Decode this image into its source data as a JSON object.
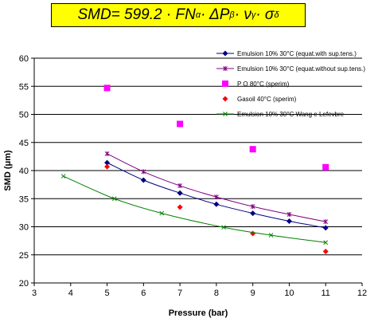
{
  "formula": {
    "lead": "SMD= 599.2 · FN",
    "alpha": "α",
    "dp": " · ΔP",
    "beta": "β",
    "visc": " · ν",
    "gamma": "γ",
    "sigma": " · σ",
    "delta": "δ"
  },
  "chart_data": {
    "type": "line",
    "xlabel": "Pressure (bar)",
    "ylabel": "SMD (μm)",
    "xlim": [
      3,
      12
    ],
    "ylim": [
      20,
      60
    ],
    "xticks": [
      3,
      4,
      5,
      6,
      7,
      8,
      9,
      10,
      11,
      12
    ],
    "yticks": [
      20,
      25,
      30,
      35,
      40,
      45,
      50,
      55,
      60
    ],
    "grid": "horizontal",
    "legend_position": "top-right",
    "series": [
      {
        "name": "Emulsion 10% 30°C (equat.with sup.tens.)",
        "color": "#000080",
        "marker": "diamond",
        "line": true,
        "x": [
          5,
          6,
          7,
          8,
          9,
          10,
          11
        ],
        "y": [
          41.4,
          38.3,
          36.0,
          34.0,
          32.4,
          31.0,
          29.8
        ]
      },
      {
        "name": "Emulsion 10% 30°C (equat.without sup.tens.)",
        "color": "#800080",
        "marker": "star",
        "line": true,
        "x": [
          5,
          6,
          7,
          8,
          9,
          10,
          11
        ],
        "y": [
          43.0,
          39.8,
          37.3,
          35.3,
          33.6,
          32.2,
          30.9
        ]
      },
      {
        "name": "P O 80°C (sperim)",
        "color": "#ff00ff",
        "marker": "square",
        "line": false,
        "x": [
          5,
          7,
          9,
          11
        ],
        "y": [
          54.7,
          48.3,
          43.8,
          40.6
        ]
      },
      {
        "name": "Gasoil 40°C (sperim)",
        "color": "#ff0000",
        "marker": "diamond",
        "line": false,
        "x": [
          5,
          7,
          9,
          11
        ],
        "y": [
          40.7,
          33.5,
          28.8,
          25.6
        ]
      },
      {
        "name": "Emulsion 10% 30°C Wang e Lefevbre",
        "color": "#008000",
        "marker": "x",
        "line": true,
        "x": [
          3.8,
          5.2,
          6.5,
          8.2,
          9.5,
          11.0
        ],
        "y": [
          39.0,
          35.0,
          32.4,
          29.9,
          28.5,
          27.2
        ]
      }
    ]
  }
}
